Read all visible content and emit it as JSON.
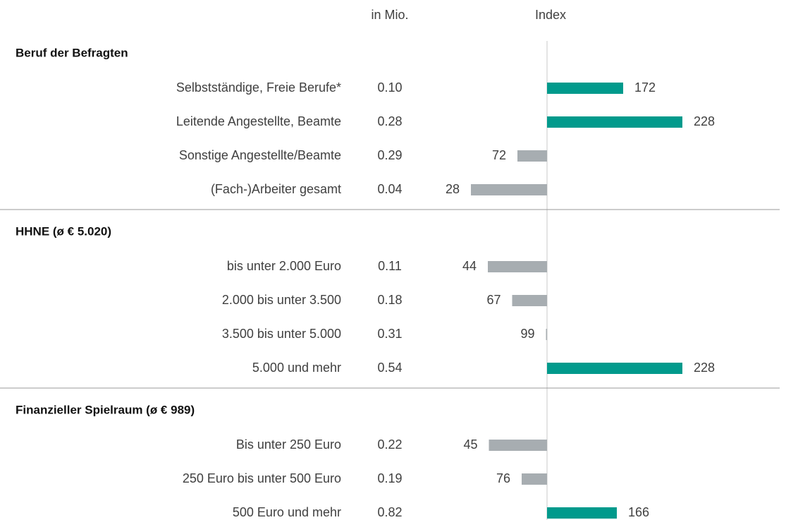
{
  "chart_data": {
    "type": "bar",
    "column_headers": {
      "mio": "in Mio.",
      "index": "Index"
    },
    "baseline": 100,
    "xlim": [
      0,
      300
    ],
    "above_color": "#009a8c",
    "below_color": "#a7adb1",
    "groups": [
      {
        "title": "Beruf der Befragten",
        "categories": [
          "Selbstständige, Freie Berufe*",
          "Leitende Angestellte, Beamte",
          "Sonstige Angestellte/Beamte",
          "(Fach-)Arbeiter gesamt"
        ],
        "mio": {
          "values": [
            0.1,
            0.28,
            0.29,
            0.04
          ],
          "value_labels": [
            "0.10",
            "0.28",
            "0.29",
            "0.04"
          ]
        },
        "values": [
          172,
          228,
          72,
          28
        ]
      },
      {
        "title": "HHNE (ø € 5.020)",
        "categories": [
          "bis unter 2.000 Euro",
          "2.000 bis unter 3.500",
          "3.500 bis unter 5.000",
          "5.000 und mehr"
        ],
        "mio": {
          "values": [
            0.11,
            0.18,
            0.31,
            0.54
          ],
          "value_labels": [
            "0.11",
            "0.18",
            "0.31",
            "0.54"
          ]
        },
        "values": [
          44,
          67,
          99,
          228
        ]
      },
      {
        "title": "Finanzieller Spielraum (ø € 989)",
        "categories": [
          "Bis unter 250 Euro",
          "250 Euro bis unter 500 Euro",
          "500 Euro und mehr"
        ],
        "mio": {
          "values": [
            0.22,
            0.19,
            0.82
          ],
          "value_labels": [
            "0.22",
            "0.19",
            "0.82"
          ]
        },
        "values": [
          45,
          76,
          166
        ]
      }
    ]
  }
}
